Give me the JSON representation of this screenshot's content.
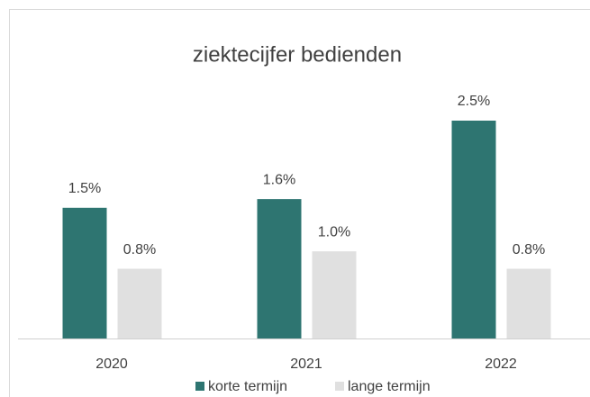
{
  "chart_data": {
    "type": "bar",
    "title": "ziektecijfer bedienden",
    "categories": [
      "2020",
      "2021",
      "2022"
    ],
    "series": [
      {
        "name": "korte termijn",
        "color": "#2e7571",
        "values": [
          1.5,
          1.6,
          2.5
        ],
        "value_labels": [
          "1.5%",
          "1.6%",
          "2.5%"
        ]
      },
      {
        "name": "lange termijn",
        "color": "#e0e0e0",
        "values": [
          0.8,
          1.0,
          0.8
        ],
        "value_labels": [
          "0.8%",
          "1.0%",
          "0.8%"
        ]
      }
    ],
    "ylim": [
      0,
      3
    ],
    "grid": false,
    "legend": "bottom"
  }
}
